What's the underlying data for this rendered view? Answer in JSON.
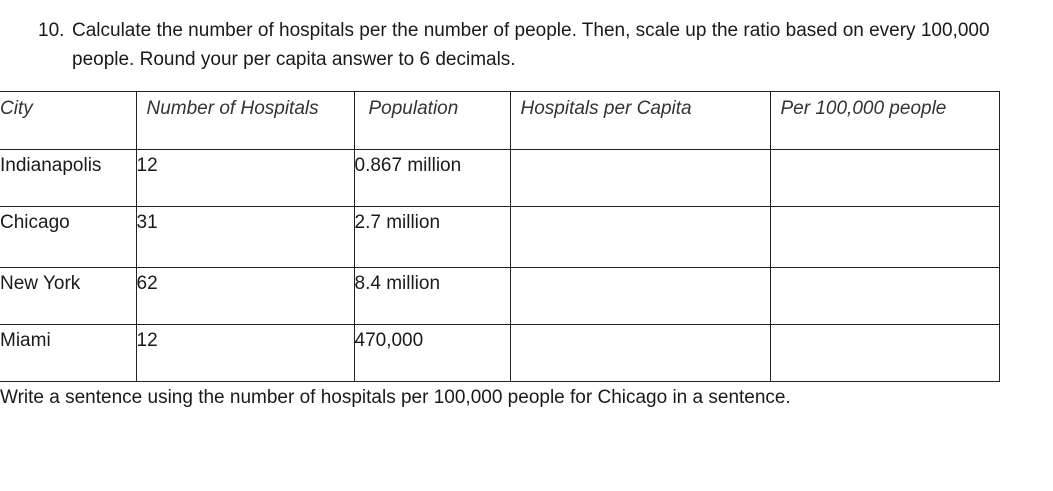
{
  "question": {
    "number": "10.",
    "text": "Calculate the number of hospitals per the number of people. Then, scale up the ratio based on every 100,000 people. Round your per capita answer to 6 decimals."
  },
  "table": {
    "headers": {
      "city": "City",
      "hospitals": "Number of Hospitals",
      "population": "Population",
      "per_capita": "Hospitals per Capita",
      "per_100k": "Per 100,000 people"
    },
    "rows": [
      {
        "city": "Indianapolis",
        "hospitals": "12",
        "population": "0.867 million",
        "per_capita": "",
        "per_100k": ""
      },
      {
        "city": "Chicago",
        "hospitals": "31",
        "population": "2.7 million",
        "per_capita": "",
        "per_100k": ""
      },
      {
        "city": "New York",
        "hospitals": "62",
        "population": "8.4 million",
        "per_capita": "",
        "per_100k": ""
      },
      {
        "city": "Miami",
        "hospitals": "12",
        "population": "470,000",
        "per_capita": "",
        "per_100k": ""
      }
    ]
  },
  "footer": {
    "sentence": "Write a sentence using the number of hospitals per 100,000 people for Chicago in a sentence."
  }
}
